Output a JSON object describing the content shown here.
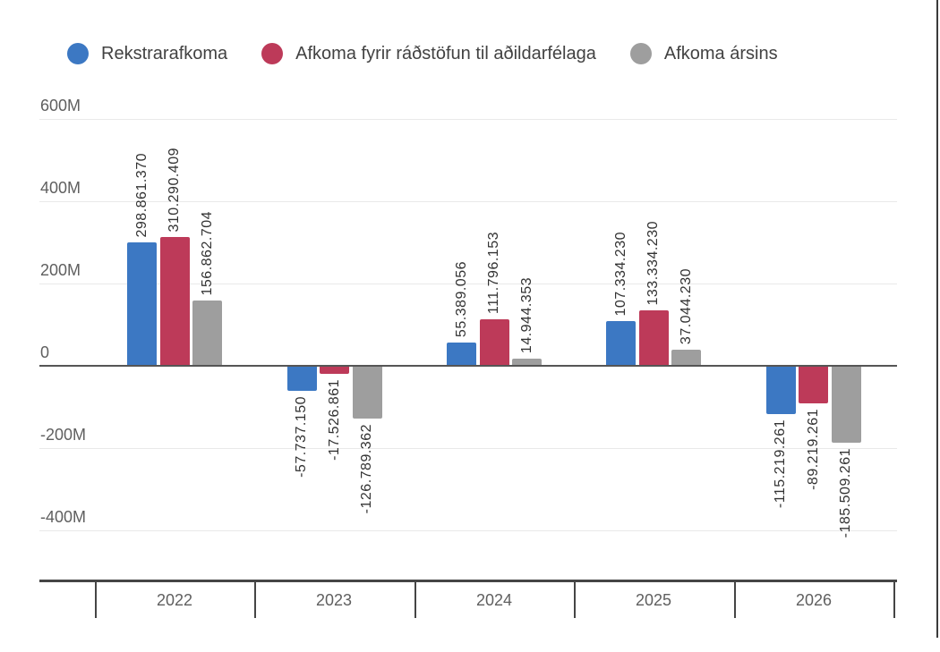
{
  "page": {
    "background": "#ffffff",
    "right_border_color": "#3a3a3a"
  },
  "legend": {
    "items": [
      {
        "label": "Rekstrarafkoma",
        "color": "#3C78C3"
      },
      {
        "label": "Afkoma fyrir ráðstöfun til aðildarfélaga",
        "color": "#BD3A59"
      },
      {
        "label": "Afkoma ársins",
        "color": "#9E9E9E"
      }
    ]
  },
  "chart_data": {
    "type": "bar",
    "title": "",
    "xlabel": "",
    "ylabel": "",
    "categories": [
      "2022",
      "2023",
      "2024",
      "2025",
      "2026"
    ],
    "series": [
      {
        "name": "Rekstrarafkoma",
        "color": "#3C78C3",
        "values": [
          298861370,
          -57737150,
          55389056,
          107334230,
          -115219261
        ],
        "labels": [
          "298.861.370",
          "-57.737.150",
          "55.389.056",
          "107.334.230",
          "-115.219.261"
        ]
      },
      {
        "name": "Afkoma fyrir ráðstöfun til aðildarfélaga",
        "color": "#BD3A59",
        "values": [
          310290409,
          -17526861,
          111796153,
          133334230,
          -89219261
        ],
        "labels": [
          "310.290.409",
          "-17.526.861",
          "111.796.153",
          "133.334.230",
          "-89.219.261"
        ]
      },
      {
        "name": "Afkoma ársins",
        "color": "#9E9E9E",
        "values": [
          156862704,
          -126789362,
          14944353,
          37044230,
          -185509261
        ],
        "labels": [
          "156.862.704",
          "-126.789.362",
          "14.944.353",
          "37.044.230",
          "-185.509.261"
        ]
      }
    ],
    "y_ticks": [
      {
        "value": 600000000,
        "label": "600M"
      },
      {
        "value": 400000000,
        "label": "400M"
      },
      {
        "value": 200000000,
        "label": "200M"
      },
      {
        "value": 0,
        "label": "0"
      },
      {
        "value": -200000000,
        "label": "-200M"
      },
      {
        "value": -400000000,
        "label": "-400M"
      }
    ],
    "ylim": [
      -450000000,
      650000000
    ],
    "grid": true,
    "legend_position": "top",
    "annotations": "rotated value labels at bar ends"
  }
}
